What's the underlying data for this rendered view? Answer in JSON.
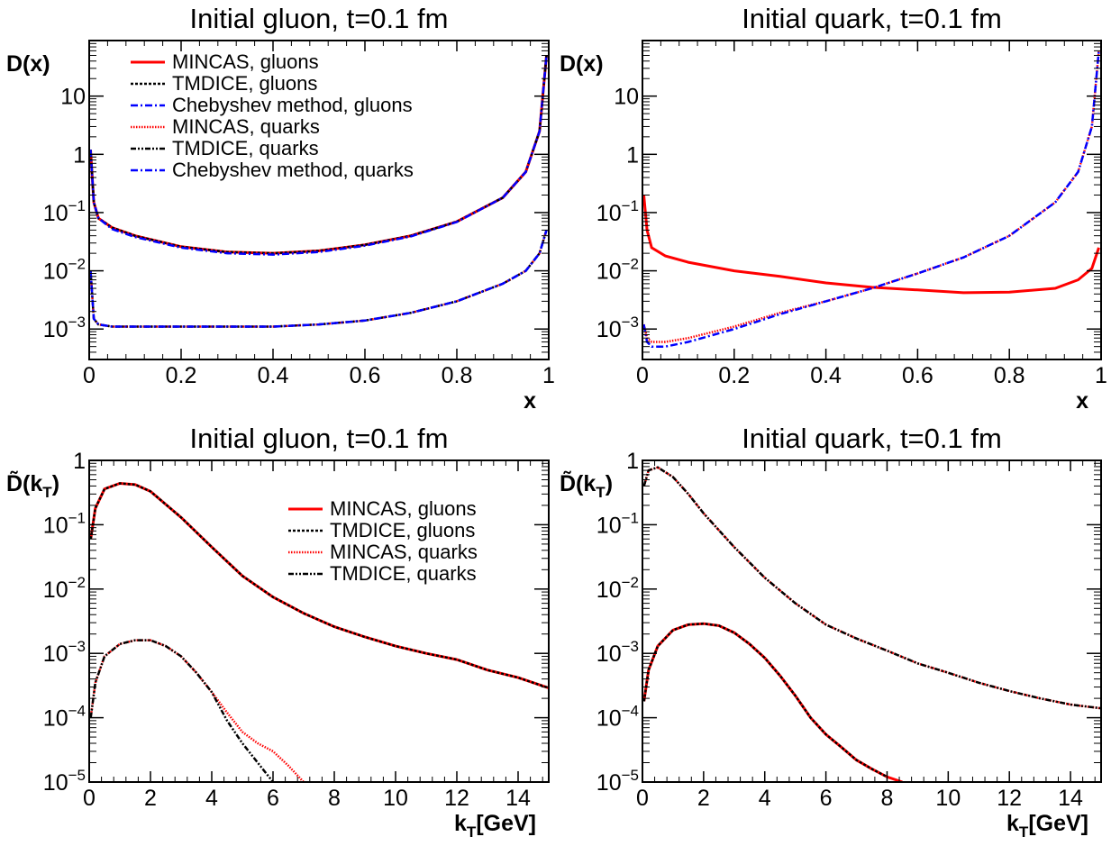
{
  "chart_data": [
    {
      "type": "line",
      "title": "Initial gluon, t=0.1 fm",
      "xlabel": "x",
      "ylabel": "D(x)",
      "xlim": [
        0,
        1
      ],
      "ylim": [
        0.0003,
        90
      ],
      "yscale": "log",
      "grid": false,
      "legend_position": "top-left",
      "x_ticks": [
        "0",
        "0.2",
        "0.4",
        "0.6",
        "0.8",
        "1"
      ],
      "y_ticks": [
        {
          "base": "10",
          "exp": "−3",
          "value": 0.001
        },
        {
          "base": "10",
          "exp": "−2",
          "value": 0.01
        },
        {
          "base": "10",
          "exp": "−1",
          "value": 0.1
        },
        {
          "base": "1",
          "exp": "",
          "value": 1
        },
        {
          "base": "10",
          "exp": "",
          "value": 10
        }
      ],
      "series": [
        {
          "name": "MINCAS, gluons",
          "color": "#ff0000",
          "style": "solid",
          "x": [
            0.003,
            0.01,
            0.02,
            0.05,
            0.1,
            0.2,
            0.3,
            0.4,
            0.5,
            0.6,
            0.7,
            0.8,
            0.9,
            0.95,
            0.98,
            0.995
          ],
          "y": [
            1.2,
            0.15,
            0.08,
            0.055,
            0.04,
            0.026,
            0.021,
            0.02,
            0.022,
            0.028,
            0.04,
            0.07,
            0.18,
            0.5,
            2.5,
            50
          ]
        },
        {
          "name": "TMDICE, gluons",
          "color": "#000000",
          "style": "dotted",
          "x": [
            0.003,
            0.01,
            0.02,
            0.05,
            0.1,
            0.2,
            0.3,
            0.4,
            0.5,
            0.6,
            0.7,
            0.8,
            0.9,
            0.95,
            0.98,
            0.995
          ],
          "y": [
            1.2,
            0.15,
            0.08,
            0.055,
            0.04,
            0.026,
            0.021,
            0.02,
            0.022,
            0.028,
            0.04,
            0.07,
            0.18,
            0.5,
            2.5,
            50
          ]
        },
        {
          "name": "Chebyshev method, gluons",
          "color": "#0000ff",
          "style": "dashdot",
          "x": [
            0.003,
            0.01,
            0.02,
            0.05,
            0.1,
            0.2,
            0.3,
            0.4,
            0.5,
            0.6,
            0.7,
            0.8,
            0.9,
            0.95,
            0.98,
            0.995
          ],
          "y": [
            1.2,
            0.15,
            0.08,
            0.052,
            0.038,
            0.025,
            0.02,
            0.019,
            0.021,
            0.027,
            0.039,
            0.069,
            0.18,
            0.5,
            2.5,
            50
          ]
        },
        {
          "name": "MINCAS, quarks",
          "color": "#ff0000",
          "style": "fine-dotted",
          "x": [
            0.003,
            0.01,
            0.02,
            0.05,
            0.1,
            0.2,
            0.3,
            0.4,
            0.5,
            0.6,
            0.7,
            0.8,
            0.9,
            0.95,
            0.98,
            0.995
          ],
          "y": [
            0.01,
            0.0015,
            0.0012,
            0.0011,
            0.0011,
            0.0011,
            0.0011,
            0.0011,
            0.0012,
            0.0014,
            0.0019,
            0.003,
            0.006,
            0.01,
            0.02,
            0.05
          ]
        },
        {
          "name": "TMDICE, quarks",
          "color": "#000000",
          "style": "dash-dot-dot",
          "x": [
            0.003,
            0.01,
            0.02,
            0.05,
            0.1,
            0.2,
            0.3,
            0.4,
            0.5,
            0.6,
            0.7,
            0.8,
            0.9,
            0.95,
            0.98,
            0.995
          ],
          "y": [
            0.01,
            0.0015,
            0.0012,
            0.0011,
            0.0011,
            0.0011,
            0.0011,
            0.0011,
            0.0012,
            0.0014,
            0.0019,
            0.003,
            0.006,
            0.01,
            0.02,
            0.05
          ]
        },
        {
          "name": "Chebyshev method, quarks",
          "color": "#0000ff",
          "style": "dashdot",
          "x": [
            0.003,
            0.01,
            0.02,
            0.05,
            0.1,
            0.2,
            0.3,
            0.4,
            0.5,
            0.6,
            0.7,
            0.8,
            0.9,
            0.95,
            0.98,
            0.995
          ],
          "y": [
            0.01,
            0.0015,
            0.0012,
            0.0011,
            0.0011,
            0.0011,
            0.0011,
            0.0011,
            0.0012,
            0.0014,
            0.0019,
            0.003,
            0.006,
            0.01,
            0.02,
            0.05
          ]
        }
      ]
    },
    {
      "type": "line",
      "title": "Initial quark, t=0.1 fm",
      "xlabel": "x",
      "ylabel": "D(x)",
      "xlim": [
        0,
        1
      ],
      "ylim": [
        0.0003,
        90
      ],
      "yscale": "log",
      "grid": false,
      "x_ticks": [
        "0",
        "0.2",
        "0.4",
        "0.6",
        "0.8",
        "1"
      ],
      "y_ticks": [
        {
          "base": "10",
          "exp": "−3",
          "value": 0.001
        },
        {
          "base": "10",
          "exp": "−2",
          "value": 0.01
        },
        {
          "base": "10",
          "exp": "−1",
          "value": 0.1
        },
        {
          "base": "1",
          "exp": "",
          "value": 1
        },
        {
          "base": "10",
          "exp": "",
          "value": 10
        }
      ],
      "series": [
        {
          "color": "#ff0000",
          "style": "solid",
          "x": [
            0.003,
            0.01,
            0.02,
            0.05,
            0.1,
            0.2,
            0.3,
            0.4,
            0.5,
            0.6,
            0.7,
            0.8,
            0.9,
            0.95,
            0.98,
            0.995
          ],
          "y": [
            0.2,
            0.05,
            0.025,
            0.018,
            0.014,
            0.01,
            0.008,
            0.0062,
            0.0052,
            0.0047,
            0.0042,
            0.0043,
            0.005,
            0.007,
            0.011,
            0.025
          ]
        },
        {
          "color": "#ff0000",
          "style": "fine-dotted",
          "x": [
            0.003,
            0.01,
            0.02,
            0.05,
            0.1,
            0.2,
            0.3,
            0.4,
            0.5,
            0.6,
            0.7,
            0.8,
            0.9,
            0.95,
            0.98,
            0.995
          ],
          "y": [
            0.0012,
            0.0007,
            0.0006,
            0.0006,
            0.0007,
            0.0011,
            0.0019,
            0.003,
            0.005,
            0.009,
            0.017,
            0.04,
            0.15,
            0.5,
            3,
            60
          ]
        },
        {
          "color": "#0000ff",
          "style": "dashdot",
          "x": [
            0.003,
            0.01,
            0.02,
            0.05,
            0.1,
            0.2,
            0.3,
            0.4,
            0.5,
            0.6,
            0.7,
            0.8,
            0.9,
            0.95,
            0.98,
            0.995
          ],
          "y": [
            0.0012,
            0.0006,
            0.0005,
            0.0005,
            0.0006,
            0.001,
            0.0018,
            0.003,
            0.005,
            0.009,
            0.017,
            0.04,
            0.15,
            0.5,
            3,
            60
          ]
        }
      ]
    },
    {
      "type": "line",
      "title": "Initial gluon, t=0.1 fm",
      "xlabel": "k",
      "xlabel_sub": "T",
      "xlabel_suffix": "[GeV]",
      "ylabel": "D̃(k",
      "ylabel_sub": "T",
      "ylabel_close": ")",
      "xlim": [
        0,
        15
      ],
      "ylim": [
        1e-05,
        1
      ],
      "yscale": "log",
      "grid": false,
      "legend_position": "top-right",
      "x_ticks": [
        "0",
        "2",
        "4",
        "6",
        "8",
        "10",
        "12",
        "14"
      ],
      "y_ticks": [
        {
          "base": "10",
          "exp": "−5",
          "value": 1e-05
        },
        {
          "base": "10",
          "exp": "−4",
          "value": 0.0001
        },
        {
          "base": "10",
          "exp": "−3",
          "value": 0.001
        },
        {
          "base": "10",
          "exp": "−2",
          "value": 0.01
        },
        {
          "base": "10",
          "exp": "−1",
          "value": 0.1
        },
        {
          "base": "1",
          "exp": "",
          "value": 1
        }
      ],
      "series": [
        {
          "name": "MINCAS, gluons",
          "color": "#ff0000",
          "style": "solid",
          "x": [
            0.05,
            0.2,
            0.5,
            1,
            1.5,
            2,
            3,
            4,
            5,
            6,
            7,
            8,
            9,
            10,
            11,
            12,
            13,
            14,
            15
          ],
          "y": [
            0.06,
            0.18,
            0.36,
            0.44,
            0.42,
            0.33,
            0.13,
            0.045,
            0.016,
            0.0075,
            0.0042,
            0.0026,
            0.0018,
            0.0013,
            0.001,
            0.0008,
            0.00055,
            0.00042,
            0.00029
          ]
        },
        {
          "name": "TMDICE, gluons",
          "color": "#000000",
          "style": "dotted",
          "x": [
            0.05,
            0.2,
            0.5,
            1,
            1.5,
            2,
            3,
            4,
            5,
            6,
            7,
            8,
            9,
            10,
            11,
            12,
            13,
            14,
            15
          ],
          "y": [
            0.06,
            0.18,
            0.36,
            0.44,
            0.42,
            0.33,
            0.13,
            0.045,
            0.016,
            0.0075,
            0.0042,
            0.0026,
            0.0018,
            0.0013,
            0.001,
            0.0008,
            0.00055,
            0.00042,
            0.00029
          ]
        },
        {
          "name": "MINCAS, quarks",
          "color": "#ff0000",
          "style": "fine-dotted",
          "x": [
            0.05,
            0.2,
            0.5,
            1,
            1.5,
            2,
            2.5,
            3,
            3.5,
            4,
            4.5,
            5,
            5.5,
            6,
            6.5,
            7
          ],
          "y": [
            0.0001,
            0.00035,
            0.0009,
            0.0014,
            0.0016,
            0.0016,
            0.0013,
            0.0009,
            0.0005,
            0.00025,
            0.00012,
            6e-05,
            4e-05,
            3e-05,
            1.8e-05,
            1e-05
          ]
        },
        {
          "name": "TMDICE, quarks",
          "color": "#000000",
          "style": "dash-dot-dot",
          "x": [
            0.05,
            0.2,
            0.5,
            1,
            1.5,
            2,
            2.5,
            3,
            3.5,
            4,
            4.5,
            5,
            5.5,
            6
          ],
          "y": [
            0.0001,
            0.00035,
            0.0009,
            0.0014,
            0.0016,
            0.0016,
            0.0013,
            0.0009,
            0.0005,
            0.00025,
            9e-05,
            4e-05,
            2e-05,
            1e-05
          ]
        }
      ]
    },
    {
      "type": "line",
      "title": "Initial quark, t=0.1 fm",
      "xlabel": "k",
      "xlabel_sub": "T",
      "xlabel_suffix": "[GeV]",
      "ylabel": "D̃(k",
      "ylabel_sub": "T",
      "ylabel_close": ")",
      "xlim": [
        0,
        15
      ],
      "ylim": [
        1e-05,
        1
      ],
      "yscale": "log",
      "grid": false,
      "x_ticks": [
        "0",
        "2",
        "4",
        "6",
        "8",
        "10",
        "12",
        "14"
      ],
      "y_ticks": [
        {
          "base": "10",
          "exp": "−5",
          "value": 1e-05
        },
        {
          "base": "10",
          "exp": "−4",
          "value": 0.0001
        },
        {
          "base": "10",
          "exp": "−3",
          "value": 0.001
        },
        {
          "base": "10",
          "exp": "−2",
          "value": 0.01
        },
        {
          "base": "10",
          "exp": "−1",
          "value": 0.1
        },
        {
          "base": "1",
          "exp": "",
          "value": 1
        }
      ],
      "series": [
        {
          "color": "#ff0000",
          "style": "fine-dotted",
          "x": [
            0.05,
            0.2,
            0.5,
            1,
            1.5,
            2,
            3,
            4,
            5,
            6,
            7,
            8,
            9,
            10,
            11,
            12,
            13,
            14,
            15
          ],
          "y": [
            0.4,
            0.7,
            0.78,
            0.55,
            0.3,
            0.15,
            0.045,
            0.015,
            0.006,
            0.0028,
            0.0017,
            0.0011,
            0.0007,
            0.0005,
            0.00035,
            0.00026,
            0.0002,
            0.00016,
            0.00014
          ]
        },
        {
          "color": "#000000",
          "style": "dash-dot-dot",
          "x": [
            0.05,
            0.2,
            0.5,
            1,
            1.5,
            2,
            3,
            4,
            5,
            6,
            7,
            8,
            9,
            10,
            11,
            12,
            13,
            14,
            15
          ],
          "y": [
            0.4,
            0.7,
            0.78,
            0.55,
            0.3,
            0.15,
            0.045,
            0.015,
            0.006,
            0.0028,
            0.0017,
            0.0011,
            0.0007,
            0.0005,
            0.00035,
            0.00026,
            0.0002,
            0.00016,
            0.00014
          ]
        },
        {
          "color": "#ff0000",
          "style": "solid",
          "x": [
            0.05,
            0.2,
            0.5,
            1,
            1.5,
            2,
            2.5,
            3,
            3.5,
            4,
            4.5,
            5,
            5.5,
            6,
            6.5,
            7,
            7.5,
            8,
            8.5
          ],
          "y": [
            0.00018,
            0.00055,
            0.0013,
            0.0023,
            0.0028,
            0.0029,
            0.0027,
            0.0021,
            0.0014,
            0.00085,
            0.00045,
            0.00022,
            0.0001,
            5.5e-05,
            3.5e-05,
            2.2e-05,
            1.6e-05,
            1.2e-05,
            1e-05
          ]
        },
        {
          "color": "#000000",
          "style": "dotted",
          "x": [
            0.05,
            0.2,
            0.5,
            1,
            1.5,
            2,
            2.5,
            3,
            3.5,
            4,
            4.5,
            5,
            5.5,
            6,
            6.5,
            7,
            7.5,
            8
          ],
          "y": [
            0.00018,
            0.00055,
            0.0013,
            0.0023,
            0.0028,
            0.0029,
            0.0027,
            0.0021,
            0.0014,
            0.00085,
            0.00045,
            0.00022,
            0.0001,
            5.5e-05,
            3.5e-05,
            2.2e-05,
            1.6e-05,
            1.2e-05
          ]
        }
      ]
    }
  ]
}
